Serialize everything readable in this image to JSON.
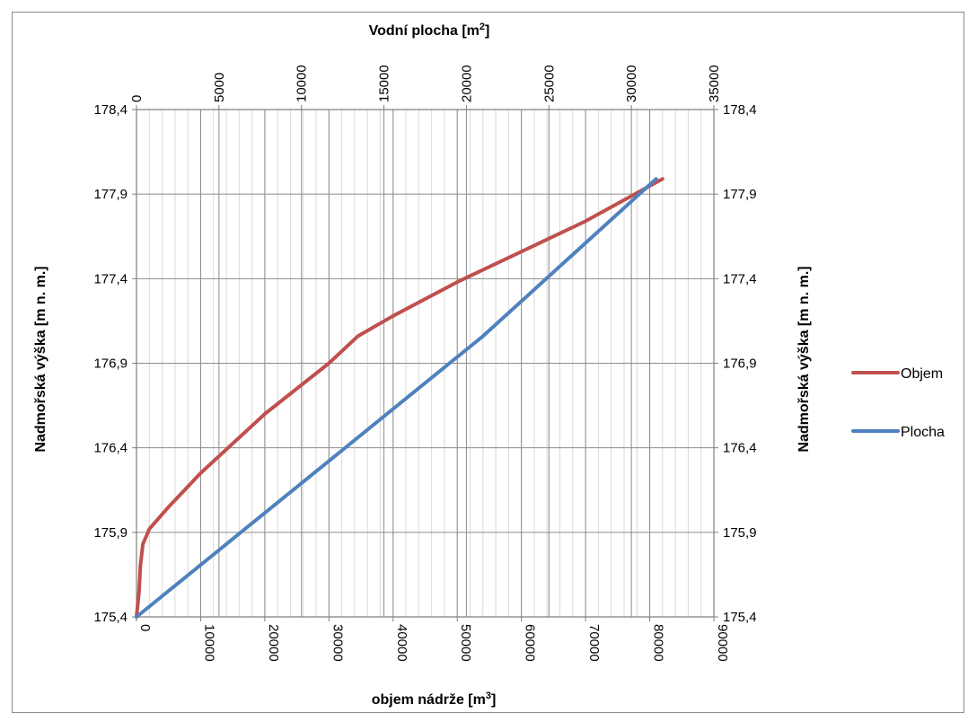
{
  "chart_data": {
    "type": "line",
    "x_bottom": {
      "label_main": "objem nádrže [m",
      "label_sup": "3",
      "label_end": "]",
      "range": [
        0,
        90000
      ],
      "ticks": [
        "0",
        "10000",
        "20000",
        "30000",
        "40000",
        "50000",
        "60000",
        "70000",
        "80000",
        "90000"
      ],
      "tick_values": [
        0,
        10000,
        20000,
        30000,
        40000,
        50000,
        60000,
        70000,
        80000,
        90000
      ]
    },
    "x_top": {
      "label_main": "Vodní plocha [m",
      "label_sup": "2",
      "label_end": "]",
      "range": [
        0,
        35000
      ],
      "ticks": [
        "0",
        "5000",
        "10000",
        "15000",
        "20000",
        "25000",
        "30000",
        "35000"
      ],
      "tick_values": [
        0,
        5000,
        10000,
        15000,
        20000,
        25000,
        30000,
        35000
      ]
    },
    "y_left": {
      "label": "Nadmořská výška [m n. m.]",
      "range": [
        175.4,
        178.4
      ],
      "ticks": [
        "175,4",
        "175,9",
        "176,4",
        "176,9",
        "177,4",
        "177,9",
        "178,4"
      ],
      "tick_values": [
        175.4,
        175.9,
        176.4,
        176.9,
        177.4,
        177.9,
        178.4
      ]
    },
    "y_right": {
      "label": "Nadmořská výška [m n. m.]",
      "ticks": [
        "175,4",
        "175,9",
        "176,4",
        "176,9",
        "177,4",
        "177,9",
        "178,4"
      ],
      "tick_values": [
        175.4,
        175.9,
        176.4,
        176.9,
        177.4,
        177.9,
        178.4
      ]
    },
    "grid": true,
    "legend_position": "right",
    "series": [
      {
        "name": "Objem",
        "axis": "bottom",
        "color": "#C0504D",
        "x": [
          0,
          400,
          600,
          1000,
          2000,
          5000,
          10000,
          20000,
          30000,
          34500,
          40000,
          50000,
          60000,
          70000,
          82000
        ],
        "y": [
          175.4,
          175.55,
          175.7,
          175.83,
          175.92,
          176.05,
          176.25,
          176.6,
          176.9,
          177.06,
          177.18,
          177.38,
          177.56,
          177.74,
          177.99
        ]
      },
      {
        "name": "Plocha",
        "axis": "top",
        "color": "#4F81BD",
        "x": [
          0,
          21000,
          31500
        ],
        "y": [
          175.4,
          177.06,
          177.99
        ]
      }
    ]
  }
}
